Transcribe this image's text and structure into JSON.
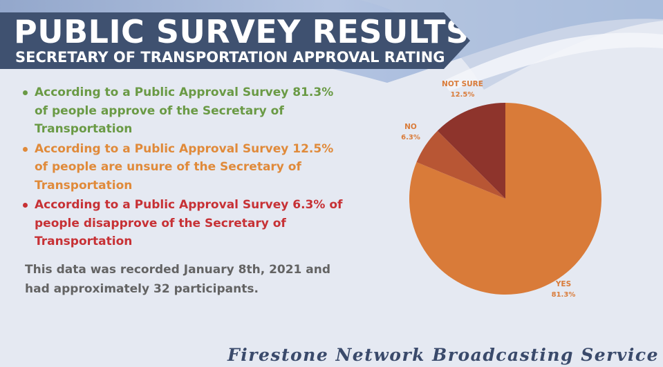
{
  "header": {
    "title": "PUBLIC SURVEY RESULTS",
    "subtitle": "SECRETARY OF TRANSPORTATION APPROVAL RATING"
  },
  "colors": {
    "banner": "#3f5170",
    "yes": "#d97b39",
    "no": "#b85634",
    "not_sure": "#8e342c",
    "bullet_green": "#6a9a45",
    "bullet_orange": "#e08a3a",
    "bullet_red": "#c73135",
    "note_gray": "#636363",
    "footer": "#3a4a6b"
  },
  "bullets": [
    {
      "text": "According to a Public Approval Survey 81.3% of people approve of the Secretary of Transportation",
      "color": "#6a9a45"
    },
    {
      "text": "According to a Public Approval Survey 12.5% of people are unsure of the Secretary of Transportation",
      "color": "#e08a3a"
    },
    {
      "text": "According to a Public Approval Survey 6.3% of people disapprove of the Secretary of Transportation",
      "color": "#c73135"
    }
  ],
  "note": "This data was recorded January 8th, 2021 and had approximately 32 participants.",
  "footer": "Firestone Network Broadcasting Service",
  "chart_data": {
    "type": "pie",
    "slices": [
      {
        "label": "YES",
        "value": 81.3,
        "value_label": "81.3%",
        "color": "#d97b39"
      },
      {
        "label": "NO",
        "value": 6.3,
        "value_label": "6.3%",
        "color": "#b85634"
      },
      {
        "label": "NOT SURE",
        "value": 12.5,
        "value_label": "12.5%",
        "color": "#8e342c"
      }
    ],
    "label_color": "#d97b39",
    "start": "12 o'clock",
    "direction": "clockwise"
  }
}
